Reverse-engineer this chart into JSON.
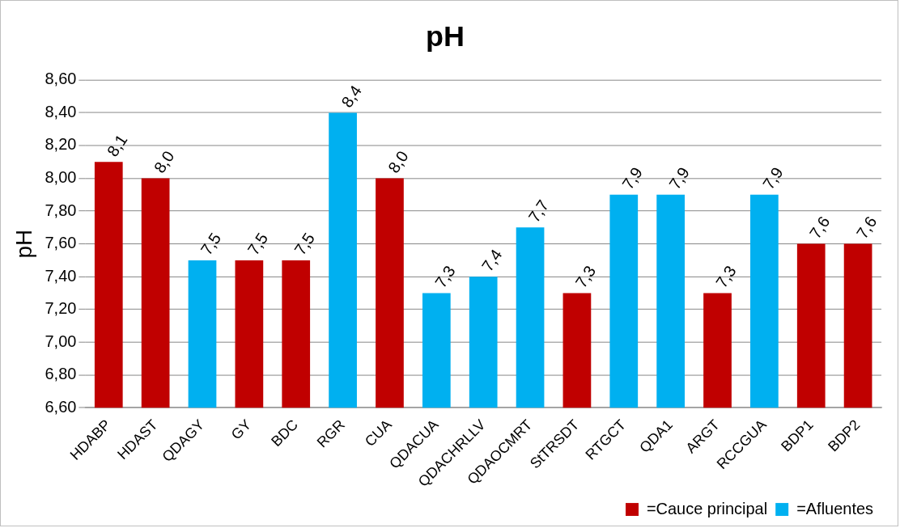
{
  "chart_data": {
    "type": "bar",
    "title": "pH",
    "ylabel": "pH",
    "categories": [
      "HDABP",
      "HDAST",
      "QDAGY",
      "GY",
      "BDC",
      "RGR",
      "CUA",
      "QDACUA",
      "QDACHRLLV",
      "QDAOCMRT",
      "StTRSDT",
      "RTGCT",
      "QDA1",
      "ARGT",
      "RCCGUA",
      "BDP1",
      "BDP2"
    ],
    "series": [
      {
        "name": "=Cauce principal",
        "color": "#c00000",
        "values": [
          8.1,
          8.0,
          null,
          7.5,
          7.5,
          null,
          8.0,
          null,
          null,
          null,
          7.3,
          null,
          null,
          7.3,
          null,
          7.6,
          7.6
        ],
        "value_labels": [
          "8,1",
          "8,0",
          null,
          "7,5",
          "7,5",
          null,
          "8,0",
          null,
          null,
          null,
          "7,3",
          null,
          null,
          "7,3",
          null,
          "7,6",
          "7,6"
        ]
      },
      {
        "name": "=Afluentes",
        "color": "#00b0f0",
        "values": [
          null,
          null,
          7.5,
          null,
          null,
          8.4,
          null,
          7.3,
          7.4,
          7.7,
          null,
          7.9,
          7.9,
          null,
          7.9,
          null,
          null
        ],
        "value_labels": [
          null,
          null,
          "7,5",
          null,
          null,
          "8,4",
          null,
          "7,3",
          "7,4",
          "7,7",
          null,
          "7,9",
          "7,9",
          null,
          "7,9",
          null,
          null
        ]
      }
    ],
    "ylim": [
      6.6,
      8.6
    ],
    "yticks": [
      {
        "value": 6.6,
        "label": "6,60"
      },
      {
        "value": 6.8,
        "label": "6,80"
      },
      {
        "value": 7.0,
        "label": "7,00"
      },
      {
        "value": 7.2,
        "label": "7,20"
      },
      {
        "value": 7.4,
        "label": "7,40"
      },
      {
        "value": 7.6,
        "label": "7,60"
      },
      {
        "value": 7.8,
        "label": "7,80"
      },
      {
        "value": 8.0,
        "label": "8,00"
      },
      {
        "value": 8.2,
        "label": "8,20"
      },
      {
        "value": 8.4,
        "label": "8,40"
      },
      {
        "value": 8.6,
        "label": "8,60"
      }
    ],
    "grid": "y",
    "legend": "bottom right"
  }
}
